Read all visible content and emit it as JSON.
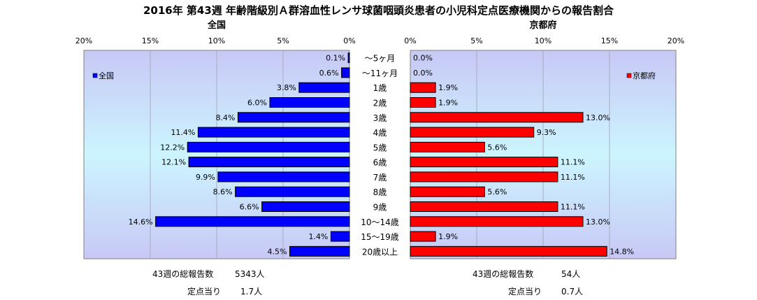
{
  "title": "2016年 第43週 年齢階級別Ａ群溶血性レンサ球菌咽頭炎患者の小児科定点医療機関からの報告割合",
  "chart_data": {
    "type": "bar",
    "orientation": "horizontal-butterfly",
    "categories": [
      "～5ヶ月",
      "～11ヶ月",
      "1歳",
      "2歳",
      "3歳",
      "4歳",
      "5歳",
      "6歳",
      "7歳",
      "8歳",
      "9歳",
      "10～14歳",
      "15～19歳",
      "20歳以上"
    ],
    "panels": [
      {
        "title": "全国",
        "legend": "全国",
        "legend_position": "top-left",
        "color": "#0000ff",
        "direction": "left",
        "xlim": [
          0,
          20
        ],
        "ticks": [
          "0%",
          "5%",
          "10%",
          "15%",
          "20%"
        ],
        "values": [
          0.1,
          0.6,
          3.8,
          6.0,
          8.4,
          11.4,
          12.2,
          12.1,
          9.9,
          8.6,
          6.6,
          14.6,
          1.4,
          4.5
        ],
        "labels": [
          "0.1%",
          "0.6%",
          "3.8%",
          "6.0%",
          "8.4%",
          "11.4%",
          "12.2%",
          "12.1%",
          "9.9%",
          "8.6%",
          "6.6%",
          "14.6%",
          "1.4%",
          "4.5%"
        ]
      },
      {
        "title": "京都府",
        "legend": "京都府",
        "legend_position": "top-right",
        "color": "#ff0000",
        "direction": "right",
        "xlim": [
          0,
          20
        ],
        "ticks": [
          "0%",
          "5%",
          "10%",
          "15%",
          "20%"
        ],
        "values": [
          0.0,
          0.0,
          1.9,
          1.9,
          13.0,
          9.3,
          5.6,
          11.1,
          11.1,
          5.6,
          11.1,
          13.0,
          1.9,
          14.8
        ],
        "labels": [
          "0.0%",
          "0.0%",
          "1.9%",
          "1.9%",
          "13.0%",
          "9.3%",
          "5.6%",
          "11.1%",
          "11.1%",
          "5.6%",
          "11.1%",
          "13.0%",
          "1.9%",
          "14.8%"
        ]
      }
    ],
    "grid": true
  },
  "footer": {
    "national_total_label": "43週の総報告数",
    "national_total_value": "5343人",
    "national_per_label": "定点当り",
    "national_per_value": "1.7人",
    "kyoto_total_label": "43週の総報告数",
    "kyoto_total_value": "54人",
    "kyoto_per_label": "定点当り",
    "kyoto_per_value": "0.7人"
  }
}
